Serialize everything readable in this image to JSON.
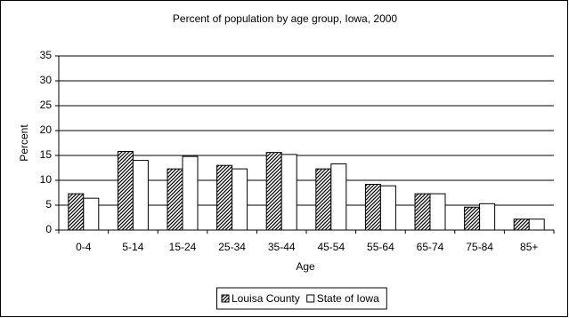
{
  "chart_data": {
    "type": "bar",
    "title": "Percent of population by age group, Iowa, 2000",
    "x_label": "Age",
    "y_label": "Percent",
    "categories": [
      "0-4",
      "5-14",
      "15-24",
      "25-34",
      "35-44",
      "45-54",
      "55-64",
      "65-74",
      "75-84",
      "85+"
    ],
    "series": [
      {
        "name": "Louisa County",
        "color": "#000000",
        "hatch": true,
        "values": [
          7.3,
          15.8,
          12.3,
          13.0,
          15.6,
          12.3,
          9.2,
          7.3,
          4.6,
          2.2
        ]
      },
      {
        "name": "State of Iowa",
        "color": "#ffffff",
        "hatch": false,
        "values": [
          6.4,
          14.0,
          14.8,
          12.3,
          15.2,
          13.3,
          8.9,
          7.3,
          5.3,
          2.2
        ]
      }
    ],
    "ylim": [
      0,
      35
    ],
    "yticks": [
      0,
      5,
      10,
      15,
      20,
      25,
      30,
      35
    ],
    "grid": true,
    "legend": "bottom"
  }
}
